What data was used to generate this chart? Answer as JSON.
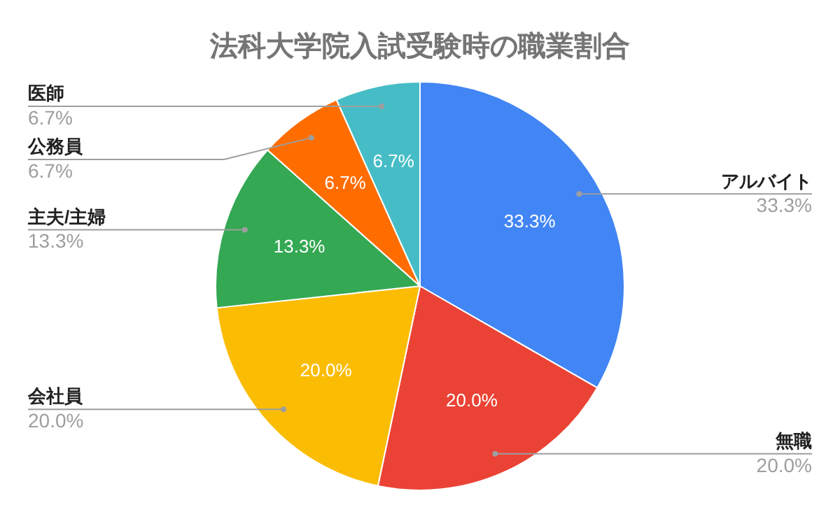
{
  "chart_data": {
    "type": "pie",
    "title": "法科大学院入試受験時の職業割合",
    "categories": [
      "アルバイト",
      "無職",
      "会社員",
      "主夫/主婦",
      "公務員",
      "医師"
    ],
    "values": [
      33.3,
      20.0,
      20.0,
      13.3,
      6.7,
      6.7
    ],
    "value_labels": [
      "33.3%",
      "20.0%",
      "20.0%",
      "13.3%",
      "6.7%",
      "6.7%"
    ],
    "colors": [
      "#4285f4",
      "#ea4335",
      "#fbbc04",
      "#34a853",
      "#ff6d01",
      "#46bdc6"
    ],
    "legend": false
  }
}
